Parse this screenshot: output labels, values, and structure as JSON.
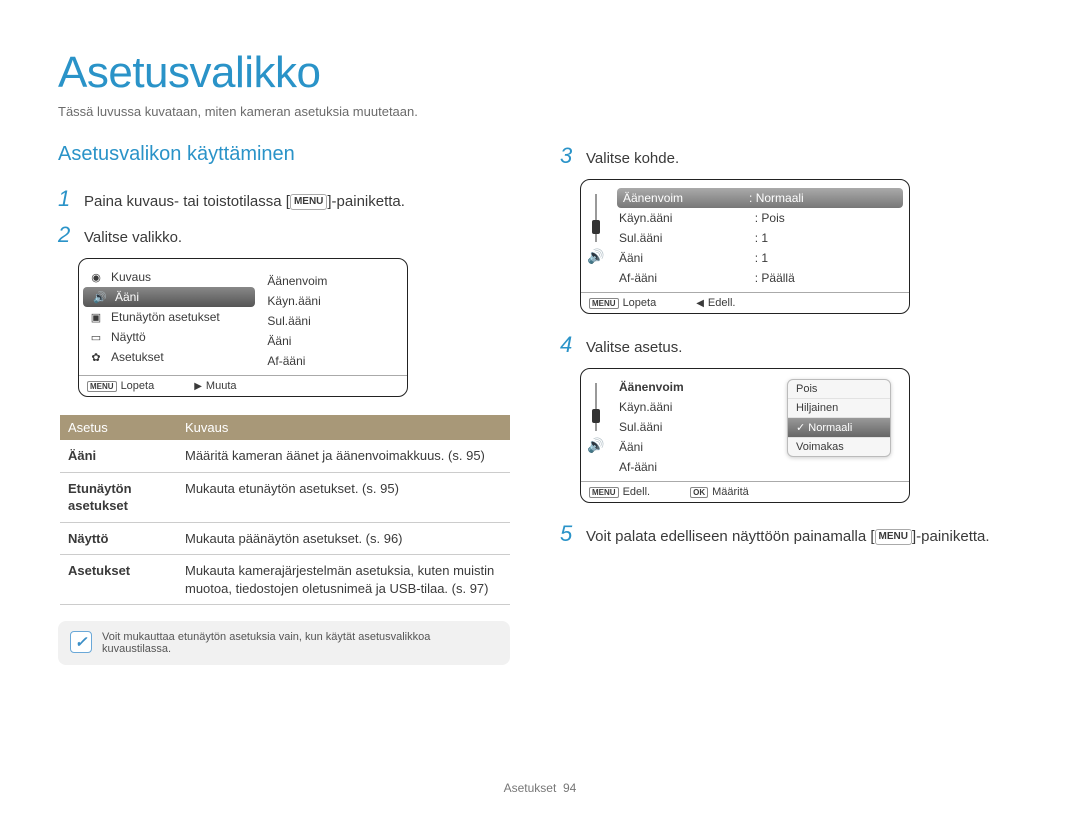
{
  "title": "Asetusvalikko",
  "subtitle": "Tässä luvussa kuvataan, miten kameran asetuksia muutetaan.",
  "section": "Asetusvalikon käyttäminen",
  "menu_label": "MENU",
  "steps": {
    "s1a": "Paina kuvaus- tai toistotilassa [",
    "s1b": "]-painiketta.",
    "s2": "Valitse valikko.",
    "s3": "Valitse kohde.",
    "s4": "Valitse asetus.",
    "s5a": "Voit palata edelliseen näyttöön painamalla [",
    "s5b": "]-painiketta."
  },
  "screen1": {
    "left": [
      "Kuvaus",
      "Ääni",
      "Etunäytön asetukset",
      "Näyttö",
      "Asetukset"
    ],
    "left_sel_index": 1,
    "right": [
      "Äänenvoim",
      "Käyn.ääni",
      "Sul.ääni",
      "Ääni",
      "Af-ääni"
    ],
    "footer_left": "Lopeta",
    "footer_right": "Muuta"
  },
  "screen2": {
    "items": [
      {
        "l": "Äänenvoim",
        "v": ": Normaali",
        "sel": true
      },
      {
        "l": "Käyn.ääni",
        "v": ": Pois"
      },
      {
        "l": "Sul.ääni",
        "v": ": 1"
      },
      {
        "l": "Ääni",
        "v": ": 1"
      },
      {
        "l": "Af-ääni",
        "v": ": Päällä"
      }
    ],
    "footer_left": "Lopeta",
    "footer_right": "Edell."
  },
  "screen3": {
    "items": [
      {
        "l": "Äänenvoim",
        "bold": true
      },
      {
        "l": "Käyn.ääni"
      },
      {
        "l": "Sul.ääni"
      },
      {
        "l": "Ääni"
      },
      {
        "l": "Af-ääni"
      }
    ],
    "popup": [
      "Pois",
      "Hiljainen",
      "Normaali",
      "Voimakas"
    ],
    "popup_sel_index": 2,
    "footer_left": "Edell.",
    "footer_right": "Määritä",
    "footer_right_btn": "OK"
  },
  "table": {
    "h1": "Asetus",
    "h2": "Kuvaus",
    "rows": [
      {
        "n": "Ääni",
        "d": "Määritä kameran äänet ja äänenvoimakkuus. (s. 95)"
      },
      {
        "n": "Etunäytön asetukset",
        "d": "Mukauta etunäytön asetukset. (s. 95)"
      },
      {
        "n": "Näyttö",
        "d": "Mukauta päänäytön asetukset. (s. 96)"
      },
      {
        "n": "Asetukset",
        "d": "Mukauta kamerajärjestelmän asetuksia, kuten muistin muotoa, tiedostojen oletusnimeä ja USB-tilaa. (s. 97)"
      }
    ]
  },
  "note": "Voit mukauttaa etunäytön asetuksia vain, kun käytät asetusvalikkoa kuvaustilassa.",
  "footer_label": "Asetukset",
  "footer_page": "94"
}
